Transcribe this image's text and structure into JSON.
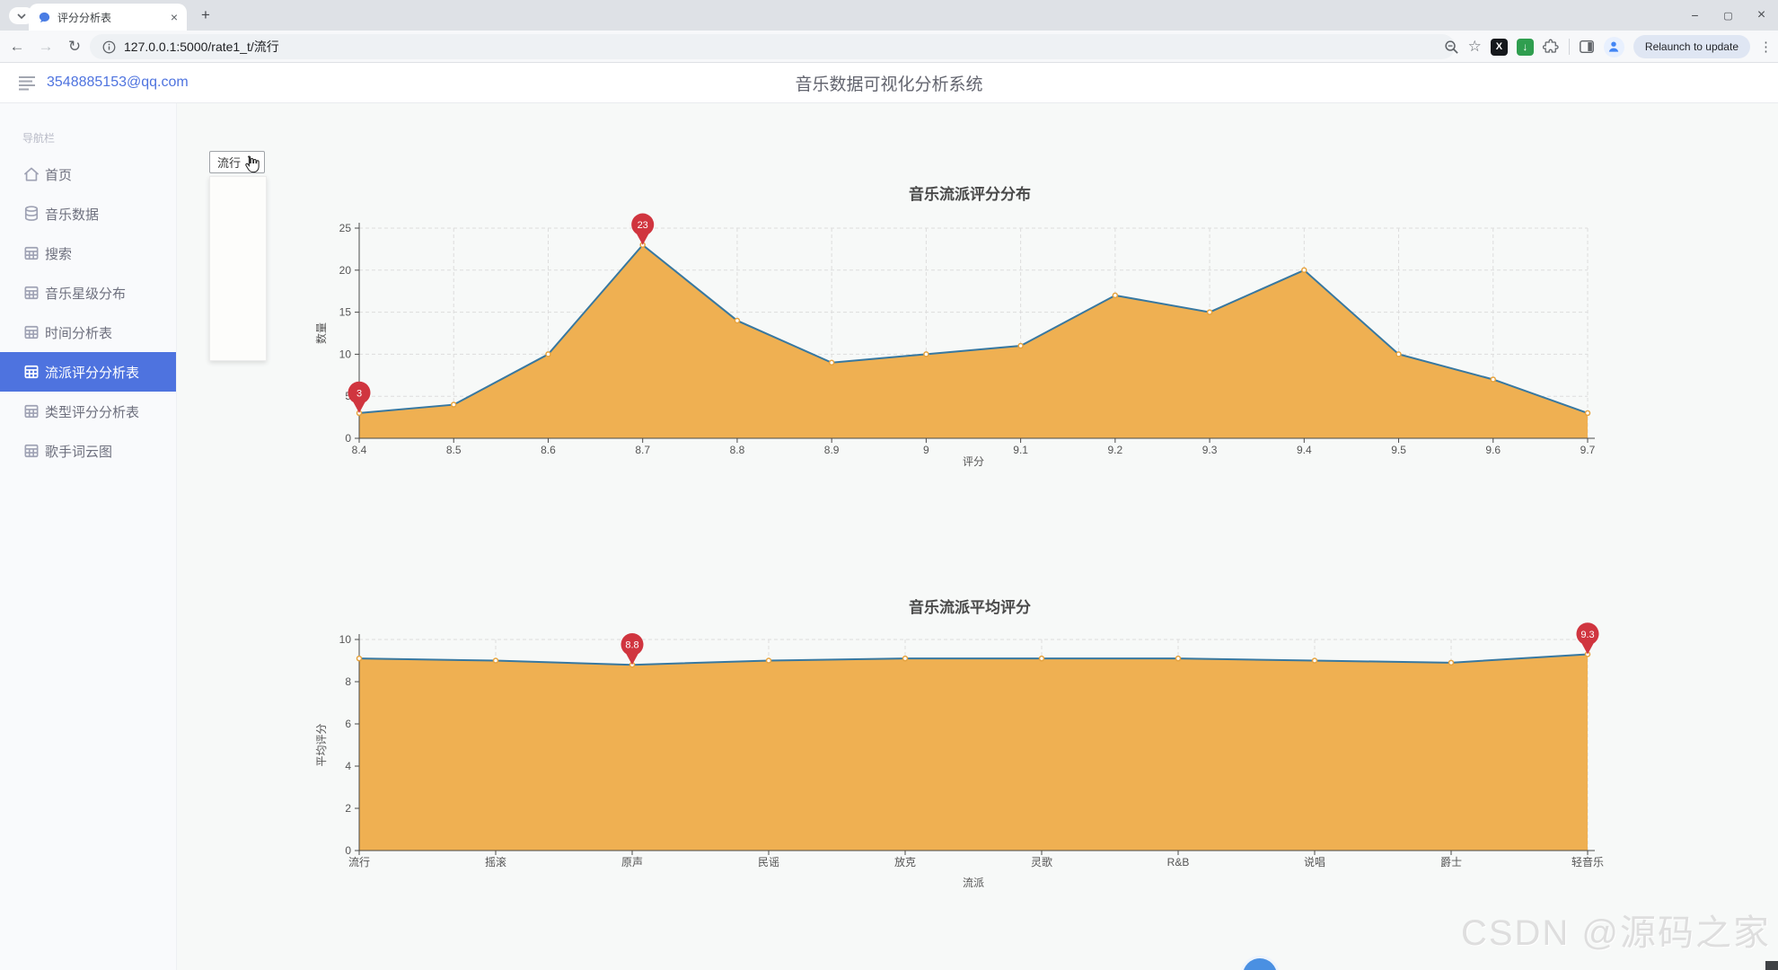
{
  "browser": {
    "tab_title": "评分分析表",
    "url": "127.0.0.1:5000/rate1_t/流行",
    "relaunch_label": "Relaunch to update"
  },
  "icons": {
    "back": "←",
    "forward": "→",
    "reload": "↻",
    "star": "☆",
    "ext_x": "X",
    "ext_down": "↓",
    "menu_dots": "⋮",
    "new_tab": "+",
    "tab_close": "×",
    "win_minimize": "−",
    "win_maximize": "▢",
    "win_close": "×",
    "tab_chevron": "∨"
  },
  "header": {
    "email": "3548885153@qq.com",
    "title": "音乐数据可视化分析系统"
  },
  "sidebar": {
    "section_label": "导航栏",
    "items": [
      {
        "label": "首页",
        "icon": "home",
        "active": false
      },
      {
        "label": "音乐数据",
        "icon": "database",
        "active": false
      },
      {
        "label": "搜索",
        "icon": "table",
        "active": false
      },
      {
        "label": "音乐星级分布",
        "icon": "table",
        "active": false
      },
      {
        "label": "时间分析表",
        "icon": "table",
        "active": false
      },
      {
        "label": "流派评分分析表",
        "icon": "table",
        "active": true
      },
      {
        "label": "类型评分分析表",
        "icon": "table",
        "active": false
      },
      {
        "label": "歌手词云图",
        "icon": "table",
        "active": false
      }
    ]
  },
  "filter": {
    "selected": "流行"
  },
  "watermark": "CSDN @源码之家",
  "chart_data": [
    {
      "type": "area",
      "title": "音乐流派评分分布",
      "x": [
        "8.4",
        "8.5",
        "8.6",
        "8.7",
        "8.8",
        "8.9",
        "9",
        "9.1",
        "9.2",
        "9.3",
        "9.4",
        "9.5",
        "9.6",
        "9.7"
      ],
      "values": [
        3,
        4,
        10,
        23,
        14,
        9,
        10,
        11,
        17,
        15,
        20,
        10,
        7,
        3
      ],
      "xlabel": "评分",
      "ylabel": "数量",
      "ylim": [
        0,
        25
      ],
      "yticks": [
        0,
        5,
        10,
        15,
        20,
        25
      ],
      "grid": true,
      "legend": "none",
      "markers": [
        {
          "index": 0,
          "label": "3",
          "kind": "min"
        },
        {
          "index": 3,
          "label": "23",
          "kind": "max"
        }
      ],
      "area_color": "#efb052",
      "line_color": "#3878a0",
      "dot_color": "#e6a23c",
      "pin_color": "#d0353f",
      "grid_color": "#dddddd"
    },
    {
      "type": "area",
      "title": "音乐流派平均评分",
      "x": [
        "流行",
        "摇滚",
        "原声",
        "民谣",
        "放克",
        "灵歌",
        "R&B",
        "说唱",
        "爵士",
        "轻音乐"
      ],
      "values": [
        9.1,
        9.0,
        8.8,
        9.0,
        9.1,
        9.1,
        9.1,
        9.0,
        8.9,
        9.3
      ],
      "xlabel": "流派",
      "ylabel": "平均评分",
      "ylim": [
        0,
        10
      ],
      "yticks": [
        0,
        2,
        4,
        6,
        8,
        10
      ],
      "grid": true,
      "legend": "none",
      "markers": [
        {
          "index": 2,
          "label": "8.8",
          "kind": "min"
        },
        {
          "index": 9,
          "label": "9.3",
          "kind": "max"
        }
      ],
      "area_color": "#efb052",
      "line_color": "#3878a0",
      "dot_color": "#e6a23c",
      "pin_color": "#d0353f",
      "grid_color": "#dddddd"
    }
  ]
}
